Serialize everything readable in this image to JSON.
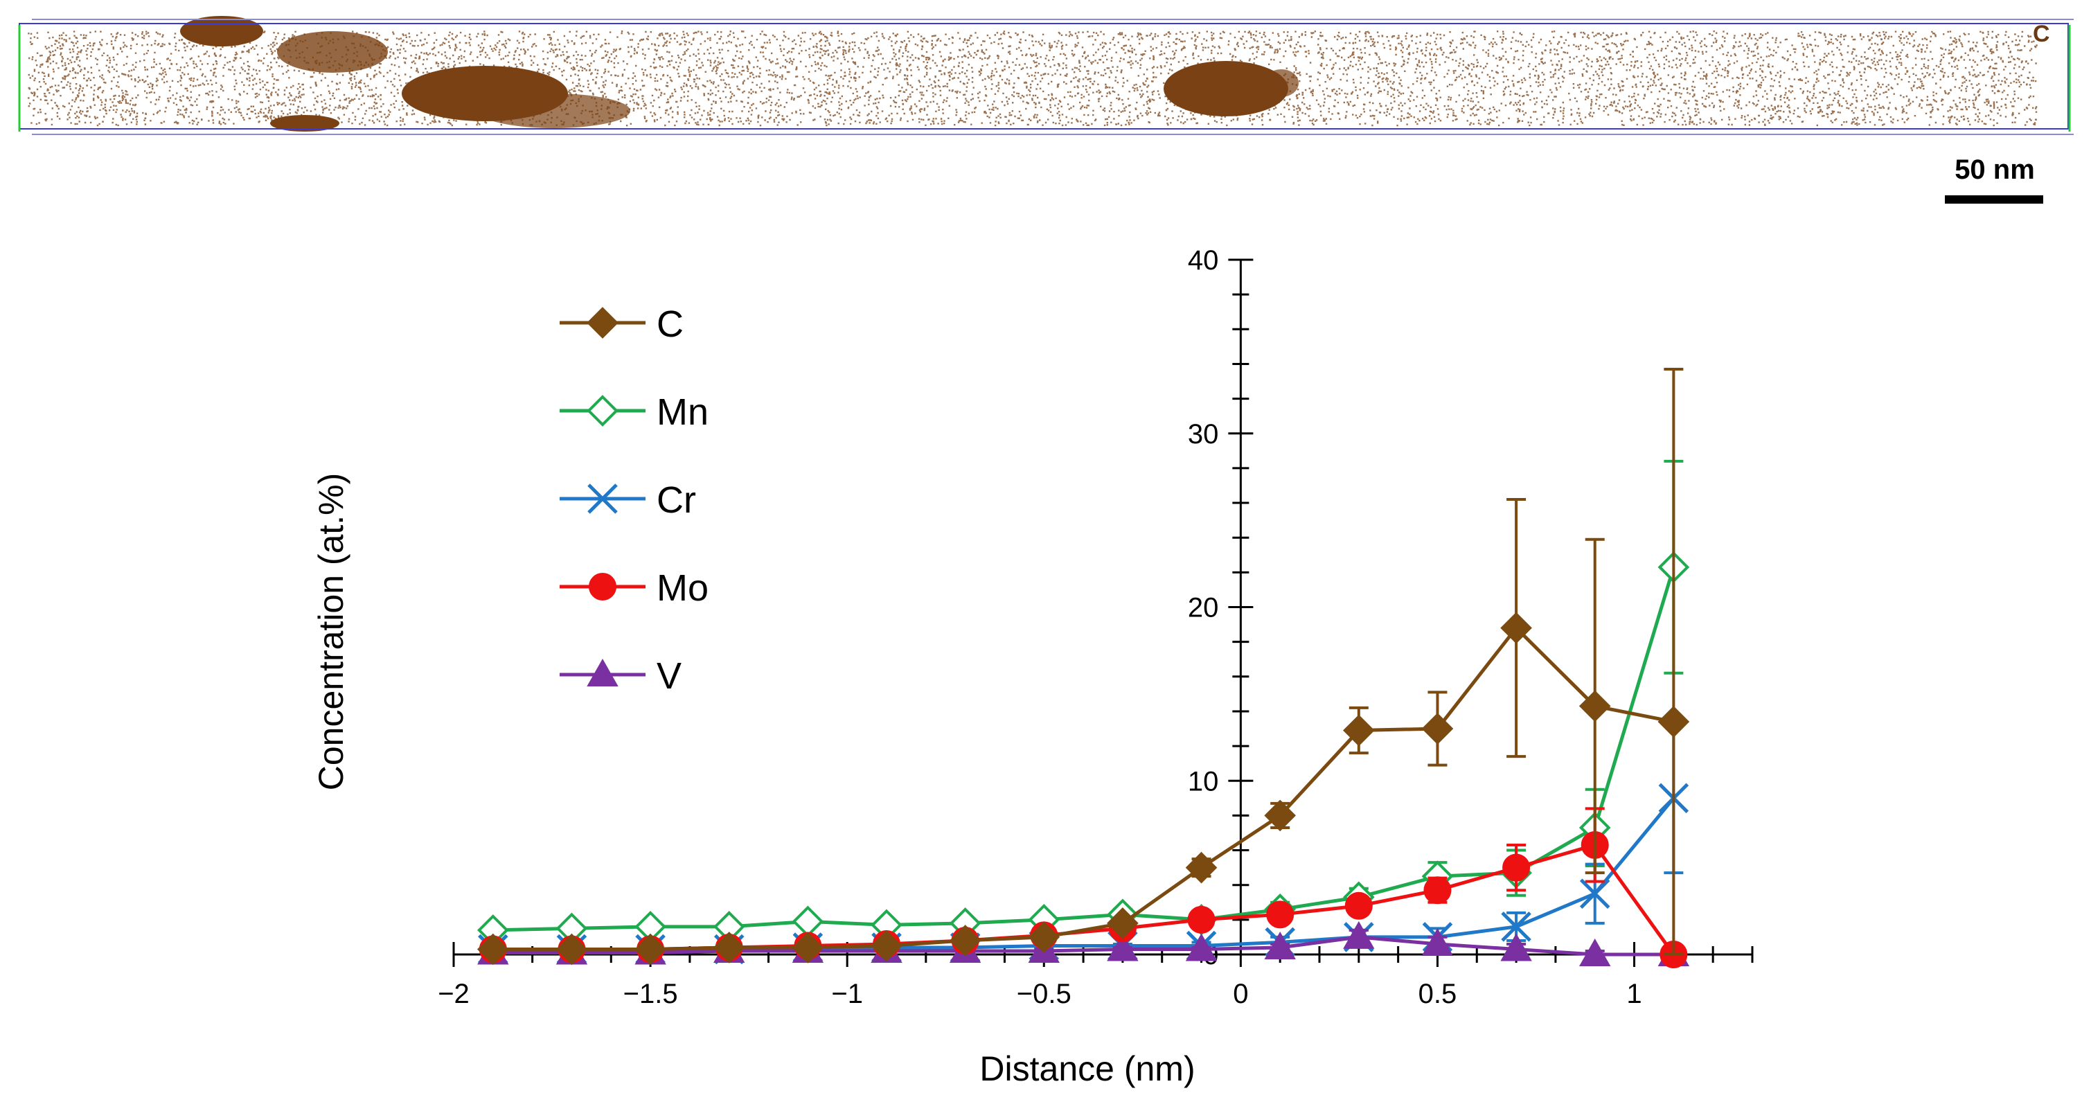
{
  "atom_map": {
    "element_label": "C",
    "scale_bar_label": "50 nm",
    "dot_color": "#7a4214"
  },
  "chart_data": {
    "type": "line",
    "title": "",
    "xlabel": "Distance (nm)",
    "ylabel": "Concentration (at.%)",
    "xlim": [
      -2,
      1.3
    ],
    "ylim": [
      0,
      40
    ],
    "x_ticks": [
      -2,
      -1.5,
      -1,
      -0.5,
      0,
      0.5,
      1
    ],
    "x_tick_labels": [
      "−2",
      "−1.5",
      "−1",
      "−0.5",
      "0",
      "0.5",
      "1"
    ],
    "y_ticks": [
      0,
      10,
      20,
      30,
      40
    ],
    "y_tick_labels": [
      "0",
      "10",
      "20",
      "30",
      "40"
    ],
    "x": [
      -1.9,
      -1.7,
      -1.5,
      -1.3,
      -1.1,
      -0.9,
      -0.7,
      -0.5,
      -0.3,
      -0.1,
      0.1,
      0.3,
      0.5,
      0.7,
      0.9,
      1.1
    ],
    "series": [
      {
        "name": "Mn",
        "color": "#1faa4f",
        "marker": "diamond-open",
        "values": [
          1.4,
          1.5,
          1.6,
          1.6,
          1.9,
          1.7,
          1.8,
          2.0,
          2.3,
          2.0,
          2.6,
          3.3,
          4.5,
          4.7,
          7.3,
          22.3
        ],
        "errors": [
          0.2,
          0.2,
          0.2,
          0.2,
          0.2,
          0.2,
          0.2,
          0.2,
          0.3,
          0.3,
          0.4,
          0.5,
          0.8,
          1.3,
          2.2,
          6.1
        ]
      },
      {
        "name": "Cr",
        "color": "#1f78c8",
        "marker": "x",
        "values": [
          0.3,
          0.3,
          0.3,
          0.3,
          0.4,
          0.4,
          0.4,
          0.5,
          0.5,
          0.5,
          0.7,
          1.0,
          1.0,
          1.6,
          3.5,
          9.0
        ],
        "errors": [
          0.1,
          0.1,
          0.1,
          0.1,
          0.1,
          0.1,
          0.1,
          0.1,
          0.1,
          0.2,
          0.3,
          0.4,
          0.5,
          0.8,
          1.7,
          4.3
        ]
      },
      {
        "name": "V",
        "color": "#7a30a0",
        "marker": "triangle",
        "values": [
          0.1,
          0.1,
          0.1,
          0.2,
          0.2,
          0.2,
          0.2,
          0.2,
          0.3,
          0.3,
          0.4,
          1.0,
          0.6,
          0.3,
          0.0,
          0.0
        ],
        "errors": [
          0.1,
          0.1,
          0.1,
          0.1,
          0.1,
          0.1,
          0.1,
          0.1,
          0.1,
          0.1,
          0.2,
          0.4,
          0.4,
          0.3,
          0.2,
          0.2
        ]
      },
      {
        "name": "Mo",
        "color": "#ee1111",
        "marker": "circle",
        "values": [
          0.3,
          0.3,
          0.3,
          0.4,
          0.5,
          0.6,
          0.8,
          1.1,
          1.5,
          2.0,
          2.3,
          2.8,
          3.7,
          5.0,
          6.3,
          0.0
        ],
        "errors": [
          0.1,
          0.1,
          0.1,
          0.1,
          0.1,
          0.1,
          0.1,
          0.2,
          0.2,
          0.3,
          0.4,
          0.5,
          0.7,
          1.3,
          2.1,
          0.2
        ]
      },
      {
        "name": "C",
        "color": "#7a4a10",
        "marker": "diamond",
        "values": [
          0.3,
          0.3,
          0.3,
          0.4,
          0.4,
          0.5,
          0.8,
          1.0,
          1.8,
          5.0,
          8.0,
          12.9,
          13.0,
          18.8,
          14.3,
          13.4
        ],
        "errors": [
          0.1,
          0.1,
          0.1,
          0.1,
          0.1,
          0.1,
          0.2,
          0.2,
          0.3,
          0.5,
          0.7,
          1.3,
          2.1,
          7.4,
          9.6,
          20.3
        ]
      }
    ],
    "legend_order": [
      "C",
      "Mn",
      "Cr",
      "Mo",
      "V"
    ],
    "legend_position": "top-left"
  }
}
